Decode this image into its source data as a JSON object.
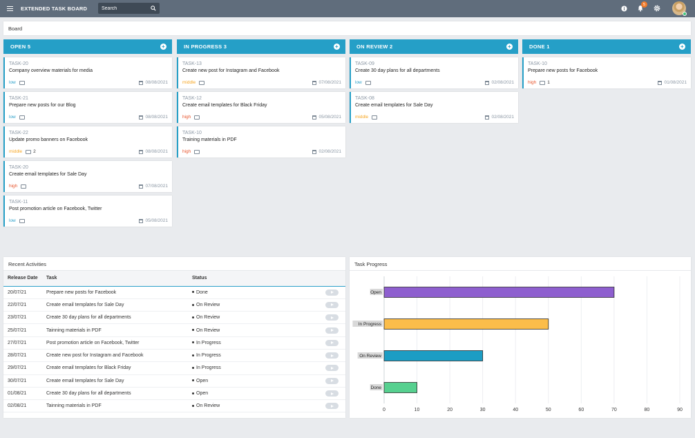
{
  "topbar": {
    "title": "EXTENDED TASK BOARD",
    "search_placeholder": "Search",
    "notification_count": "5"
  },
  "board": {
    "title": "Board",
    "columns": [
      {
        "label": "OPEN 5",
        "cards": [
          {
            "id": "TASK-20",
            "title": "Company overview materials for media",
            "priority": "low",
            "comments": "",
            "date": "08/08/2021"
          },
          {
            "id": "TASK-21",
            "title": "Prepare new posts for our Blog",
            "priority": "low",
            "comments": "",
            "date": "08/08/2021"
          },
          {
            "id": "TASK-22",
            "title": "Update promo banners on Facebook",
            "priority": "middle",
            "comments": "2",
            "date": "08/08/2021"
          },
          {
            "id": "TASK-20",
            "title": "Create email templates for Sale Day",
            "priority": "high",
            "comments": "",
            "date": "07/08/2021"
          },
          {
            "id": "TASK-11",
            "title": "Post promotion article on Facebook, Twitter",
            "priority": "low",
            "comments": "",
            "date": "05/08/2021"
          }
        ]
      },
      {
        "label": "IN PROGRESS 3",
        "cards": [
          {
            "id": "TASK-13",
            "title": "Create new post for Instagram and Facebook",
            "priority": "middle",
            "comments": "",
            "date": "07/08/2021"
          },
          {
            "id": "TASK-12",
            "title": "Create email templates for Black Friday",
            "priority": "high",
            "comments": "",
            "date": "05/08/2021"
          },
          {
            "id": "TASK-10",
            "title": "Training materials in PDF",
            "priority": "high",
            "comments": "",
            "date": "02/08/2021"
          }
        ]
      },
      {
        "label": "ON REVIEW 2",
        "cards": [
          {
            "id": "TASK-09",
            "title": "Create 30 day plans for all departments",
            "priority": "low",
            "comments": "",
            "date": "02/08/2021"
          },
          {
            "id": "TASK-08",
            "title": "Create email templates for Sale Day",
            "priority": "middle",
            "comments": "",
            "date": "02/08/2021"
          }
        ]
      },
      {
        "label": "DONE 1",
        "cards": [
          {
            "id": "TASK-10",
            "title": "Prepare new posts for Facebook",
            "priority": "high",
            "comments": "1",
            "date": "01/08/2021"
          }
        ]
      }
    ]
  },
  "activities": {
    "title": "Recent Activities",
    "headers": [
      "Release Date",
      "Task",
      "Status"
    ],
    "rows": [
      {
        "date": "20/07/21",
        "task": "Prepare new posts for Facebook",
        "status": "Done"
      },
      {
        "date": "22/07/21",
        "task": "Create email templates for Sale Day",
        "status": "On Review"
      },
      {
        "date": "23/07/21",
        "task": "Create 30 day plans for all departments",
        "status": "On Review"
      },
      {
        "date": "25/07/21",
        "task": "Tainning materials in PDF",
        "status": "On Review"
      },
      {
        "date": "27/07/21",
        "task": "Post promotion article on Facebook, Twitter",
        "status": "In Progress"
      },
      {
        "date": "28/07/21",
        "task": "Create new post for Instagram and Facebook",
        "status": "In Progress"
      },
      {
        "date": "29/07/21",
        "task": "Create email templates for Black Friday",
        "status": "In Progress"
      },
      {
        "date": "30/07/21",
        "task": "Create email templates for Sale Day",
        "status": "Open"
      },
      {
        "date": "01/08/21",
        "task": "Create 30 day plans for all departments",
        "status": "Open"
      },
      {
        "date": "02/08/21",
        "task": "Tainning materials in PDF",
        "status": "On Review"
      }
    ]
  },
  "colors": {
    "accent": "#259fc7",
    "topbar": "#606d7c",
    "low": "#2a9fc9",
    "middle": "#f6a623",
    "high": "#e8552d"
  },
  "icons": {
    "menu": "menu-icon",
    "search": "search-icon",
    "info": "info-icon",
    "bell": "bell-icon",
    "settings": "gear-icon",
    "add": "plus-icon",
    "comment": "comment-icon",
    "calendar": "calendar-icon",
    "play": "play-icon"
  },
  "task_progress": {
    "title": "Task Progress"
  },
  "chart_data": {
    "type": "bar",
    "orientation": "horizontal",
    "title": "",
    "categories": [
      "Open",
      "In Progress",
      "On Review",
      "Done"
    ],
    "values": [
      70,
      50,
      30,
      10
    ],
    "colors": [
      "#8e5fcf",
      "#fbbd4a",
      "#1c9dc4",
      "#56d08f"
    ],
    "xlim": [
      0,
      90
    ],
    "xticks": [
      0,
      10,
      20,
      30,
      40,
      50,
      60,
      70,
      80,
      90
    ],
    "grid": true,
    "legend": "none"
  }
}
